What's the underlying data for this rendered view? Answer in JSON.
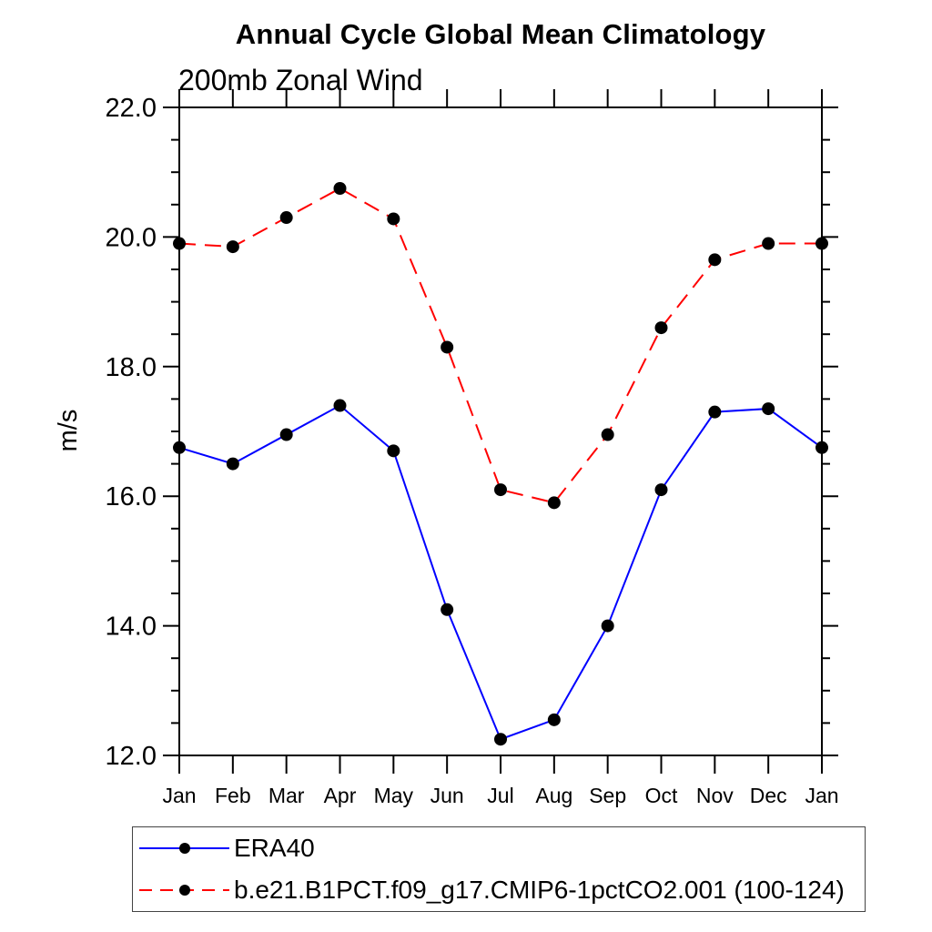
{
  "page": {
    "background": "#ffffff"
  },
  "title": "Annual Cycle Global Mean Climatology",
  "subtitle": "200mb Zonal Wind",
  "chart_data": {
    "type": "line",
    "title": "Annual Cycle Global Mean Climatology",
    "subtitle": "200mb Zonal Wind",
    "xlabel": "",
    "ylabel": "m/s",
    "ylim": [
      12.0,
      22.0
    ],
    "ytick_major": [
      {
        "value": 12,
        "label": "12.0"
      },
      {
        "value": 14,
        "label": "14.0"
      },
      {
        "value": 16,
        "label": "16.0"
      },
      {
        "value": 18,
        "label": "18.0"
      },
      {
        "value": 20,
        "label": "20.0"
      },
      {
        "value": 22,
        "label": "22.0"
      }
    ],
    "ytick_minor_step": 0.5,
    "grid": false,
    "frame_color": "#000000",
    "categories": [
      "Jan",
      "Feb",
      "Mar",
      "Apr",
      "May",
      "Jun",
      "Jul",
      "Aug",
      "Sep",
      "Oct",
      "Nov",
      "Dec",
      "Jan"
    ],
    "series": [
      {
        "name": "ERA40",
        "color": "#0000ff",
        "line_style": "solid",
        "marker": "circle",
        "marker_color": "#000000",
        "values": [
          16.75,
          16.5,
          16.95,
          17.4,
          16.7,
          14.25,
          12.25,
          12.55,
          14.0,
          16.1,
          17.3,
          17.35,
          16.75
        ]
      },
      {
        "name": "b.e21.B1PCT.f09_g17.CMIP6-1pctCO2.001 (100-124)",
        "color": "#ff0000",
        "line_style": "dashed",
        "marker": "circle",
        "marker_color": "#000000",
        "values": [
          19.9,
          19.85,
          20.3,
          20.75,
          20.28,
          18.3,
          16.1,
          15.9,
          16.95,
          18.6,
          19.65,
          19.9,
          19.9
        ]
      }
    ],
    "legend_position": "bottom"
  }
}
